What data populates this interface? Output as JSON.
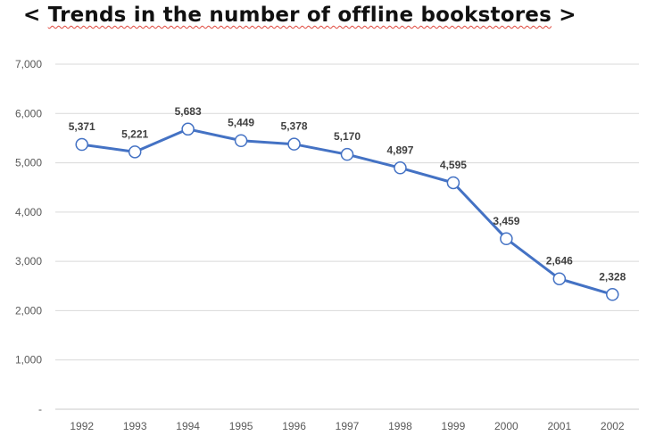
{
  "title": {
    "open": "<",
    "text": "Trends in the number of offline bookstores",
    "close": ">"
  },
  "chart_data": {
    "type": "line",
    "title": "< Trends in the number of offline bookstores >",
    "categories": [
      "1992",
      "1993",
      "1994",
      "1995",
      "1996",
      "1997",
      "1998",
      "1999",
      "2000",
      "2001",
      "2002"
    ],
    "series": [
      {
        "values": [
          5371,
          5221,
          5683,
          5449,
          5378,
          5170,
          4897,
          4595,
          3459,
          2646,
          2328
        ]
      }
    ],
    "data_labels": [
      "5,371",
      "5,221",
      "5,683",
      "5,449",
      "5,378",
      "5,170",
      "4,897",
      "4,595",
      "3,459",
      "2,646",
      "2,328"
    ],
    "y_ticks": [
      "-",
      "1,000",
      "2,000",
      "3,000",
      "4,000",
      "5,000",
      "6,000",
      "7,000"
    ],
    "ylim": [
      0,
      7000
    ],
    "grid": true,
    "legend": "none",
    "line_color": "#4472c4",
    "marker": "open-circle"
  }
}
